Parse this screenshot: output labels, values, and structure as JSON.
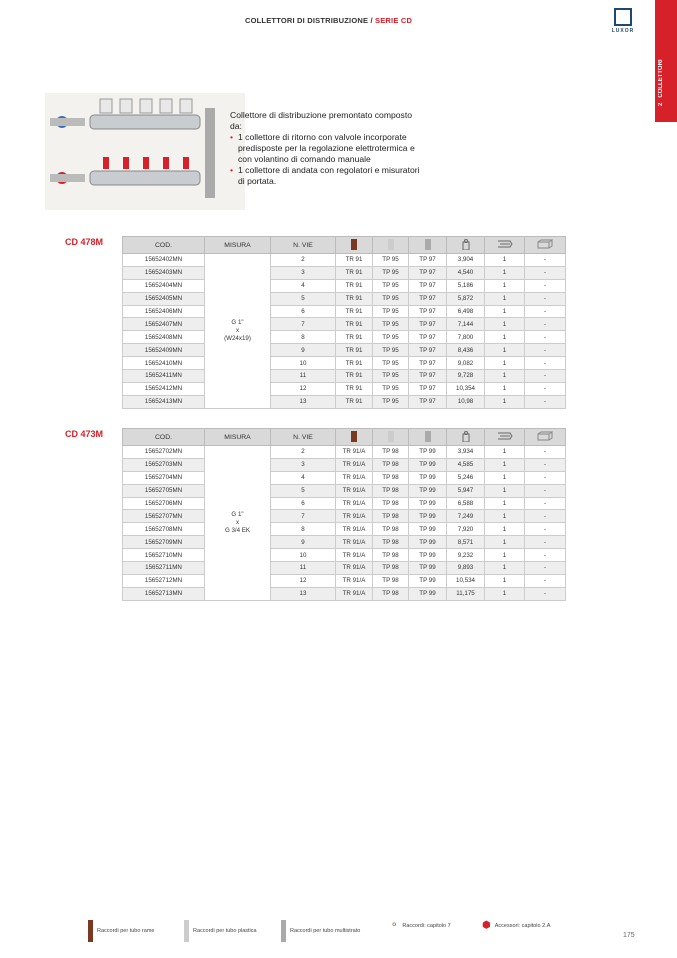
{
  "header": {
    "title": "COLLETTORI DI DISTRIBUZIONE / ",
    "series": "SERIE CD",
    "logo": "LUXOR",
    "tab_number": "2",
    "tab_label": "COLLETTORI"
  },
  "description": {
    "intro": "Collettore di distribuzione premontato composto da:",
    "bullets": [
      "1 collettore di ritorno con valvole incorporate predisposte per la regolazione elettrotermica e con volantino di comando manuale",
      "1 collettore di andata con regolatori e misuratori di portata."
    ]
  },
  "columns": [
    "COD.",
    "MISURA",
    "N. VIE",
    "copper-fitting-icon",
    "plastic-fitting-icon",
    "multilayer-fitting-icon",
    "weight-icon",
    "box-icon",
    "carton-icon"
  ],
  "tables": [
    {
      "name": "CD 478M",
      "misura": [
        "G 1\"",
        "x",
        "(W24x19)"
      ],
      "rows": [
        [
          "15652402MN",
          "2",
          "TR 91",
          "TP 95",
          "TP 97",
          "3,904",
          "1",
          "-"
        ],
        [
          "15652403MN",
          "3",
          "TR 91",
          "TP 95",
          "TP 97",
          "4,540",
          "1",
          "-"
        ],
        [
          "15652404MN",
          "4",
          "TR 91",
          "TP 95",
          "TP 97",
          "5,186",
          "1",
          "-"
        ],
        [
          "15652405MN",
          "5",
          "TR 91",
          "TP 95",
          "TP 97",
          "5,872",
          "1",
          "-"
        ],
        [
          "15652406MN",
          "6",
          "TR 91",
          "TP 95",
          "TP 97",
          "6,498",
          "1",
          "-"
        ],
        [
          "15652407MN",
          "7",
          "TR 91",
          "TP 95",
          "TP 97",
          "7,144",
          "1",
          "-"
        ],
        [
          "15652408MN",
          "8",
          "TR 91",
          "TP 95",
          "TP 97",
          "7,800",
          "1",
          "-"
        ],
        [
          "15652409MN",
          "9",
          "TR 91",
          "TP 95",
          "TP 97",
          "8,436",
          "1",
          "-"
        ],
        [
          "15652410MN",
          "10",
          "TR 91",
          "TP 95",
          "TP 97",
          "9,082",
          "1",
          "-"
        ],
        [
          "15652411MN",
          "11",
          "TR 91",
          "TP 95",
          "TP 97",
          "9,728",
          "1",
          "-"
        ],
        [
          "15652412MN",
          "12",
          "TR 91",
          "TP 95",
          "TP 97",
          "10,354",
          "1",
          "-"
        ],
        [
          "15652413MN",
          "13",
          "TR 91",
          "TP 95",
          "TP 97",
          "10,98",
          "1",
          "-"
        ]
      ]
    },
    {
      "name": "CD 473M",
      "misura": [
        "G 1\"",
        "x",
        "G 3/4 EK"
      ],
      "rows": [
        [
          "15652702MN",
          "2",
          "TR 91/A",
          "TP 98",
          "TP 99",
          "3,934",
          "1",
          "-"
        ],
        [
          "15652703MN",
          "3",
          "TR 91/A",
          "TP 98",
          "TP 99",
          "4,585",
          "1",
          "-"
        ],
        [
          "15652704MN",
          "4",
          "TR 91/A",
          "TP 98",
          "TP 99",
          "5,246",
          "1",
          "-"
        ],
        [
          "15652705MN",
          "5",
          "TR 91/A",
          "TP 98",
          "TP 99",
          "5,947",
          "1",
          "-"
        ],
        [
          "15652706MN",
          "6",
          "TR 91/A",
          "TP 98",
          "TP 99",
          "6,588",
          "1",
          "-"
        ],
        [
          "15652707MN",
          "7",
          "TR 91/A",
          "TP 98",
          "TP 99",
          "7,249",
          "1",
          "-"
        ],
        [
          "15652708MN",
          "8",
          "TR 91/A",
          "TP 98",
          "TP 99",
          "7,920",
          "1",
          "-"
        ],
        [
          "15652709MN",
          "9",
          "TR 91/A",
          "TP 98",
          "TP 99",
          "8,571",
          "1",
          "-"
        ],
        [
          "15652710MN",
          "10",
          "TR 91/A",
          "TP 98",
          "TP 99",
          "9,232",
          "1",
          "-"
        ],
        [
          "15652711MN",
          "11",
          "TR 91/A",
          "TP 98",
          "TP 99",
          "9,893",
          "1",
          "-"
        ],
        [
          "15652712MN",
          "12",
          "TR 91/A",
          "TP 98",
          "TP 99",
          "10,534",
          "1",
          "-"
        ],
        [
          "15652713MN",
          "13",
          "TR 91/A",
          "TP 98",
          "TP 99",
          "11,175",
          "1",
          "-"
        ]
      ]
    }
  ],
  "legend": [
    "Raccordi per tubo rame",
    "Raccordi per tubo plastica",
    "Raccordi per tubo multistrato",
    "Raccordi: capitolo 7",
    "Accessori: capitolo 2.A"
  ],
  "page_number": "175",
  "colors": {
    "accent": "#d6202a",
    "brand": "#1d4a6b",
    "copper": "#7a3a22"
  }
}
